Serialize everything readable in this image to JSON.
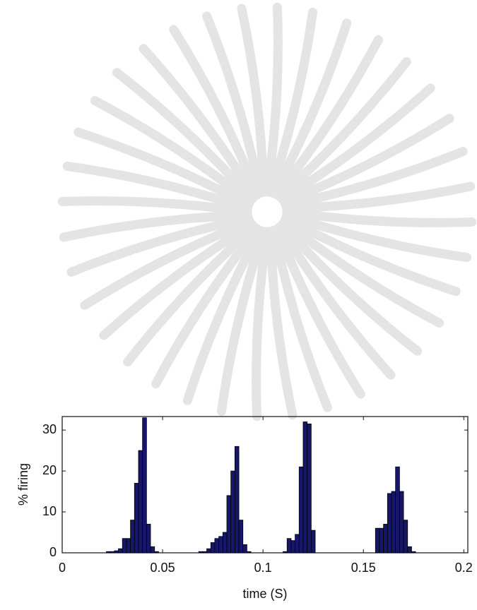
{
  "chart_data": {
    "type": "histogram",
    "xlabel": "time (S)",
    "ylabel": "% firing",
    "bins": [
      0.022,
      0.024,
      0.026,
      0.028,
      0.03,
      0.032,
      0.034,
      0.036,
      0.038,
      0.04,
      0.042,
      0.044,
      0.046,
      0.048,
      0.05,
      0.052,
      0.054,
      0.056,
      0.058,
      0.06,
      0.062,
      0.064,
      0.066,
      0.068,
      0.07,
      0.072,
      0.074,
      0.076,
      0.078,
      0.08,
      0.082,
      0.084,
      0.086,
      0.088,
      0.09,
      0.092,
      0.094,
      0.096,
      0.098,
      0.1,
      0.102,
      0.104,
      0.106,
      0.108,
      0.11,
      0.112,
      0.114,
      0.116,
      0.118,
      0.12,
      0.122,
      0.124,
      0.126,
      0.128,
      0.13,
      0.132,
      0.134,
      0.136,
      0.138,
      0.14,
      0.142,
      0.144,
      0.146,
      0.148,
      0.15,
      0.152,
      0.154,
      0.156,
      0.158,
      0.16,
      0.162,
      0.164,
      0.166,
      0.168,
      0.17,
      0.172,
      0.174,
      0.176,
      0.178
    ],
    "values": [
      0.3,
      0.3,
      0.5,
      1,
      3.5,
      3.5,
      8,
      17,
      25,
      33,
      7,
      1.5,
      0.3,
      0,
      0,
      0,
      0,
      0,
      0,
      0,
      0,
      0,
      0,
      0.3,
      0.3,
      1,
      2.5,
      3.5,
      4,
      5,
      14,
      20,
      26,
      8,
      2,
      0.3,
      0,
      0,
      0,
      0,
      0,
      0,
      0,
      0,
      0.3,
      3.5,
      3,
      4.5,
      21,
      32,
      31.5,
      5.5,
      0,
      0,
      0,
      0,
      0,
      0,
      0,
      0,
      0,
      0,
      0,
      0,
      0,
      0,
      0,
      6,
      6,
      7,
      14.5,
      15,
      21,
      15,
      8,
      1.5,
      0.3,
      0
    ],
    "color": "#16166a",
    "xlim": [
      0,
      0.202
    ],
    "xticks": [
      0,
      0.05,
      0.1,
      0.15,
      0.2
    ],
    "ylim": [
      0,
      33.3
    ],
    "yticks": [
      0,
      10,
      20,
      30
    ]
  }
}
